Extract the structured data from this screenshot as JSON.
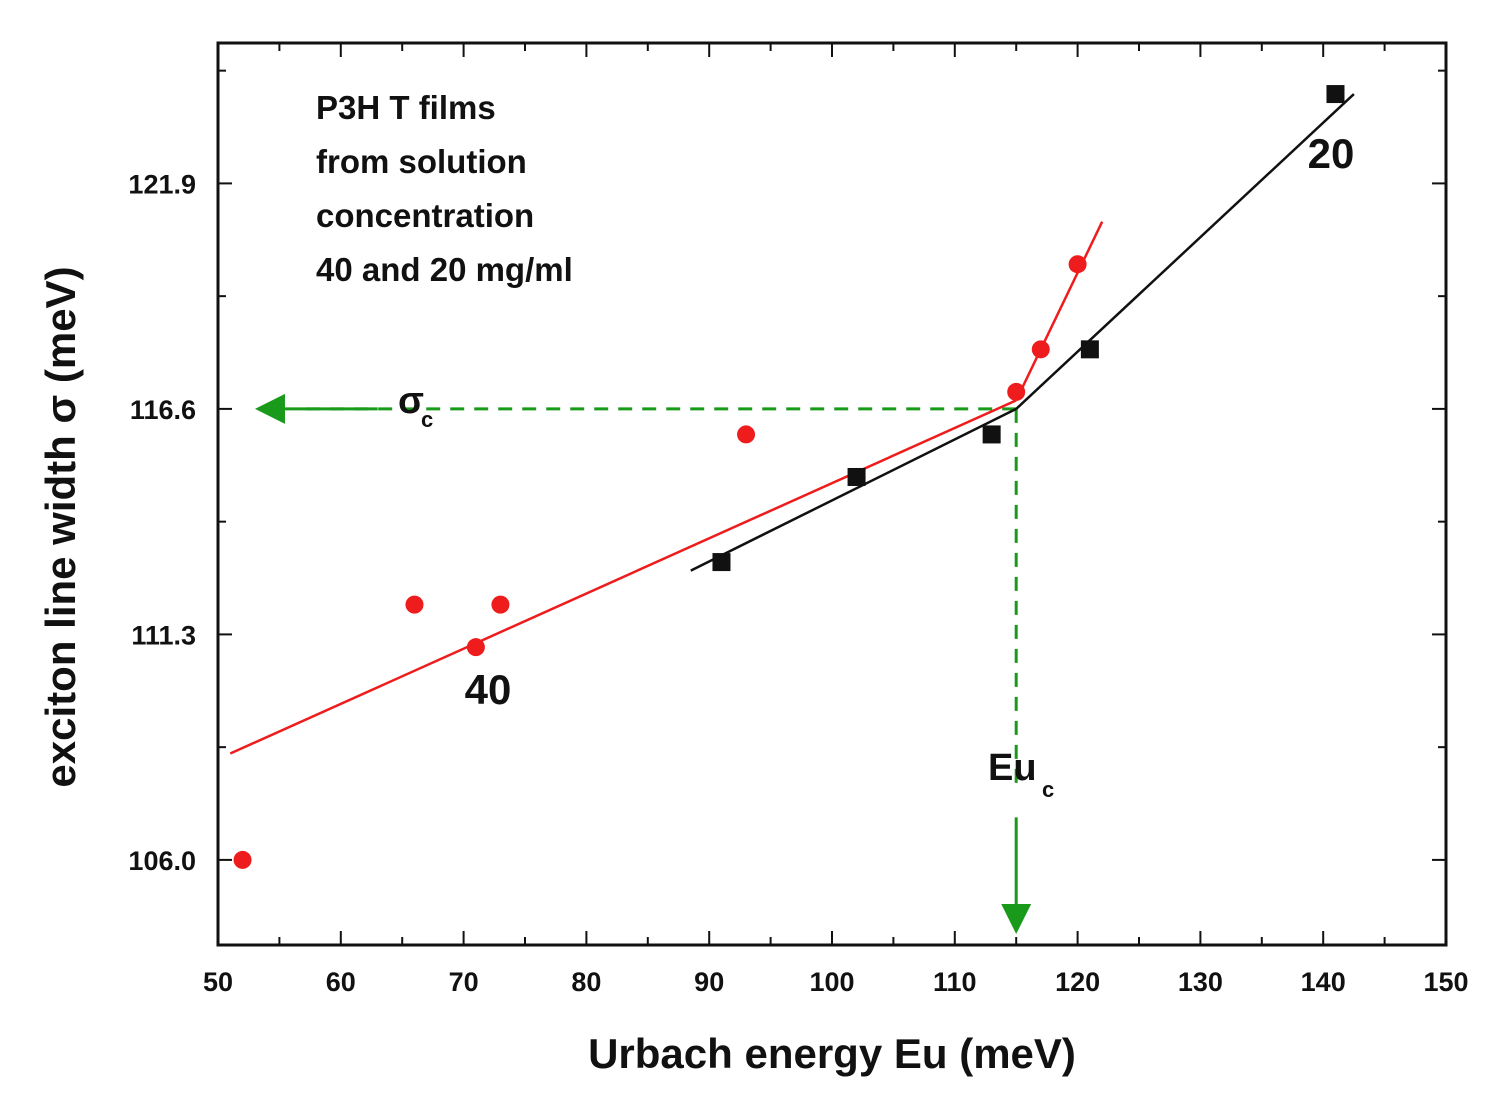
{
  "chart_data": {
    "type": "scatter",
    "xlabel": "Urbach energy Eu (meV)",
    "ylabel": "exciton line width σ (meV)",
    "xlim": [
      50,
      150
    ],
    "ylim": [
      104.0,
      125.2
    ],
    "x_ticks": [
      50,
      60,
      70,
      80,
      90,
      100,
      110,
      120,
      130,
      140,
      150
    ],
    "x_tick_labels": [
      "50",
      "60",
      "70",
      "80",
      "90",
      "100",
      "110",
      "120",
      "130",
      "140",
      "150"
    ],
    "y_ticks": [
      106.0,
      111.3,
      116.6,
      121.9
    ],
    "y_tick_labels": [
      "106.0",
      "111.3",
      "116.6",
      "121.9"
    ],
    "annotation": {
      "lines": [
        "P3H T films",
        "from solution",
        "concentration",
        "40 and 20 mg/ml"
      ]
    },
    "series": [
      {
        "name": "40",
        "label": "40",
        "marker": "circle",
        "color": "#ee1c1c",
        "points": [
          [
            52,
            106.0
          ],
          [
            66,
            112.0
          ],
          [
            71,
            111.0
          ],
          [
            73,
            112.0
          ],
          [
            93,
            116.0
          ],
          [
            115,
            117.0
          ],
          [
            117,
            118.0
          ],
          [
            120,
            120.0
          ]
        ],
        "fits": [
          {
            "x": [
              51,
              115
            ],
            "y": [
              108.5,
              116.8
            ]
          },
          {
            "x": [
              115,
              122
            ],
            "y": [
              116.8,
              121.0
            ]
          }
        ]
      },
      {
        "name": "20",
        "label": "20",
        "marker": "square",
        "color": "#111111",
        "points": [
          [
            91,
            113.0
          ],
          [
            102,
            115.0
          ],
          [
            113,
            116.0
          ],
          [
            121,
            118.0
          ],
          [
            141,
            124.0
          ]
        ],
        "fits": [
          {
            "x": [
              88.5,
              115
            ],
            "y": [
              112.8,
              116.6
            ]
          },
          {
            "x": [
              115,
              142.5
            ],
            "y": [
              116.6,
              124.0
            ]
          }
        ]
      }
    ],
    "critical_point": {
      "x": 115,
      "y": 116.6,
      "color": "#1a9a1a",
      "sigma_label": "σ",
      "sigma_sub": "c",
      "eu_label": "Eu",
      "eu_sub": "c"
    }
  }
}
